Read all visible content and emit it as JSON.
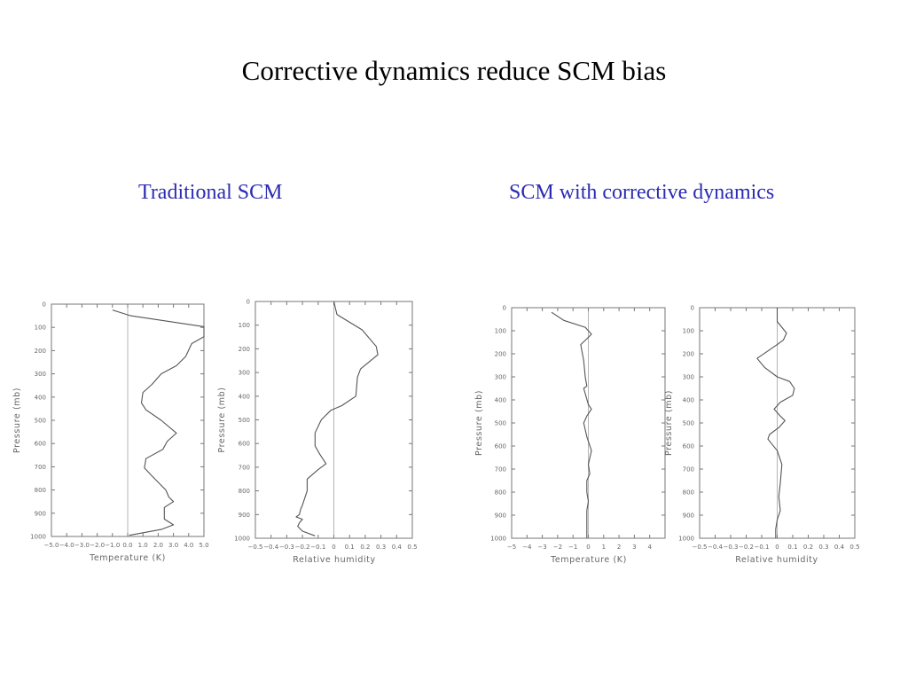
{
  "slide": {
    "title": "Corrective dynamics reduce SCM bias",
    "panel_left_title": "Traditional SCM",
    "panel_right_title": "SCM with corrective dynamics"
  },
  "chart_data": [
    {
      "type": "line",
      "xlabel": "Temperature (K)",
      "ylabel": "Pressure (mb)",
      "xlim": [
        -5.0,
        5.0
      ],
      "ylim": [
        1000,
        0
      ],
      "xticks": [
        -5.0,
        -4.0,
        -3.0,
        -2.0,
        -1.0,
        0.0,
        1.0,
        2.0,
        3.0,
        4.0,
        5.0
      ],
      "xtick_labels": [
        "-5.0",
        "-4.0",
        "-3.0",
        "-2.0",
        "-1.0",
        "0.0",
        "1.0",
        "2.0",
        "3.0",
        "4.0",
        "5.0"
      ],
      "yticks": [
        0,
        100,
        200,
        300,
        400,
        500,
        600,
        700,
        800,
        900,
        1000
      ],
      "ytick_labels": [
        "0",
        "100",
        "200",
        "300",
        "400",
        "500",
        "600",
        "700",
        "800",
        "900",
        "1000"
      ],
      "grid": false,
      "series": [
        {
          "x": [
            -1.0,
            0.2,
            5.0,
            5.0,
            4.2,
            3.8,
            3.2,
            2.2,
            1.6,
            1.0,
            0.9,
            1.2,
            2.2,
            3.2,
            2.6,
            2.3,
            1.2,
            1.1,
            1.6,
            2.5,
            2.7,
            3.0,
            2.4,
            2.4,
            3.0,
            2.2,
            0.1
          ],
          "y": [
            25,
            50,
            97,
            140,
            170,
            225,
            265,
            300,
            345,
            380,
            425,
            455,
            500,
            555,
            590,
            625,
            665,
            705,
            740,
            800,
            830,
            850,
            875,
            925,
            950,
            970,
            995
          ]
        }
      ]
    },
    {
      "type": "line",
      "xlabel": "Relative humidity",
      "ylabel": "Pressure (mb)",
      "xlim": [
        -0.5,
        0.5
      ],
      "ylim": [
        1000,
        0
      ],
      "xticks": [
        -0.5,
        -0.4,
        -0.3,
        -0.2,
        -0.1,
        0,
        0.1,
        0.2,
        0.3,
        0.4,
        0.5
      ],
      "xtick_labels": [
        "-0.5",
        "-0.4",
        "-0.3",
        "-0.2",
        "-0.1",
        "0",
        "0.1",
        "0.2",
        "0.3",
        "0.4",
        "0.5"
      ],
      "yticks": [
        0,
        100,
        200,
        300,
        400,
        500,
        600,
        700,
        800,
        900,
        1000
      ],
      "ytick_labels": [
        "0",
        "100",
        "200",
        "300",
        "400",
        "500",
        "600",
        "700",
        "800",
        "900",
        "1000"
      ],
      "grid": false,
      "series": [
        {
          "x": [
            0.0,
            0.02,
            0.18,
            0.27,
            0.28,
            0.17,
            0.15,
            0.14,
            0.05,
            -0.02,
            -0.08,
            -0.12,
            -0.12,
            -0.09,
            -0.05,
            -0.1,
            -0.17,
            -0.17,
            -0.2,
            -0.21,
            -0.22,
            -0.24,
            -0.2,
            -0.22,
            -0.23,
            -0.2,
            -0.12
          ],
          "y": [
            0,
            55,
            120,
            190,
            225,
            285,
            320,
            400,
            440,
            460,
            500,
            555,
            610,
            645,
            685,
            710,
            750,
            800,
            860,
            875,
            900,
            910,
            920,
            935,
            950,
            970,
            990
          ]
        }
      ]
    },
    {
      "type": "line",
      "xlabel": "Temperature (K)",
      "ylabel": "Pressure (mb)",
      "xlim": [
        -5,
        5
      ],
      "ylim": [
        1000,
        0
      ],
      "xticks": [
        -5,
        -4,
        -3,
        -2,
        -1,
        0,
        1,
        2,
        3,
        4
      ],
      "xtick_labels": [
        "-5",
        "-4",
        "-3",
        "-2",
        "-1",
        "0",
        "1",
        "2",
        "3",
        "4"
      ],
      "yticks": [
        0,
        100,
        200,
        300,
        400,
        500,
        600,
        700,
        800,
        900,
        1000
      ],
      "ytick_labels": [
        "0",
        "100",
        "200",
        "300",
        "400",
        "500",
        "600",
        "700",
        "800",
        "900",
        "1000"
      ],
      "grid": false,
      "series": [
        {
          "x": [
            -2.4,
            -1.6,
            -0.2,
            0.2,
            -0.1,
            -0.5,
            -0.3,
            -0.2,
            -0.1,
            -0.3,
            0.0,
            0.2,
            -0.1,
            -0.3,
            -0.1,
            0.2,
            0.0,
            0.1,
            -0.1,
            -0.1,
            0.0,
            -0.1,
            -0.1,
            -0.1,
            -0.1
          ],
          "y": [
            20,
            55,
            85,
            115,
            135,
            160,
            230,
            300,
            340,
            350,
            420,
            440,
            470,
            500,
            560,
            620,
            680,
            720,
            750,
            800,
            840,
            880,
            930,
            970,
            1000
          ]
        }
      ]
    },
    {
      "type": "line",
      "xlabel": "Relative humidity",
      "ylabel": "Pressure (mb)",
      "xlim": [
        -0.5,
        0.5
      ],
      "ylim": [
        1000,
        0
      ],
      "xticks": [
        -0.5,
        -0.4,
        -0.3,
        -0.2,
        -0.1,
        0,
        0.1,
        0.2,
        0.3,
        0.4,
        0.5
      ],
      "xtick_labels": [
        "-0.5",
        "-0.4",
        "-0.3",
        "-0.2",
        "-0.1",
        "0",
        "0.1",
        "0.2",
        "0.3",
        "0.4",
        "0.5"
      ],
      "yticks": [
        0,
        100,
        200,
        300,
        400,
        500,
        600,
        700,
        800,
        900,
        1000
      ],
      "ytick_labels": [
        "0",
        "100",
        "200",
        "300",
        "400",
        "500",
        "600",
        "700",
        "800",
        "900",
        "1000"
      ],
      "grid": false,
      "series": [
        {
          "x": [
            0.0,
            0.0,
            0.06,
            0.04,
            0.0,
            -0.13,
            -0.08,
            0.0,
            0.08,
            0.11,
            0.1,
            0.02,
            -0.02,
            0.02,
            0.05,
            0.01,
            -0.05,
            -0.06,
            0.0,
            0.03,
            0.02,
            0.01,
            0.02,
            0.0,
            -0.01,
            -0.01
          ],
          "y": [
            0,
            60,
            110,
            140,
            160,
            220,
            260,
            300,
            320,
            350,
            380,
            410,
            440,
            470,
            490,
            520,
            550,
            570,
            620,
            680,
            760,
            820,
            880,
            920,
            960,
            1000
          ]
        }
      ]
    }
  ]
}
